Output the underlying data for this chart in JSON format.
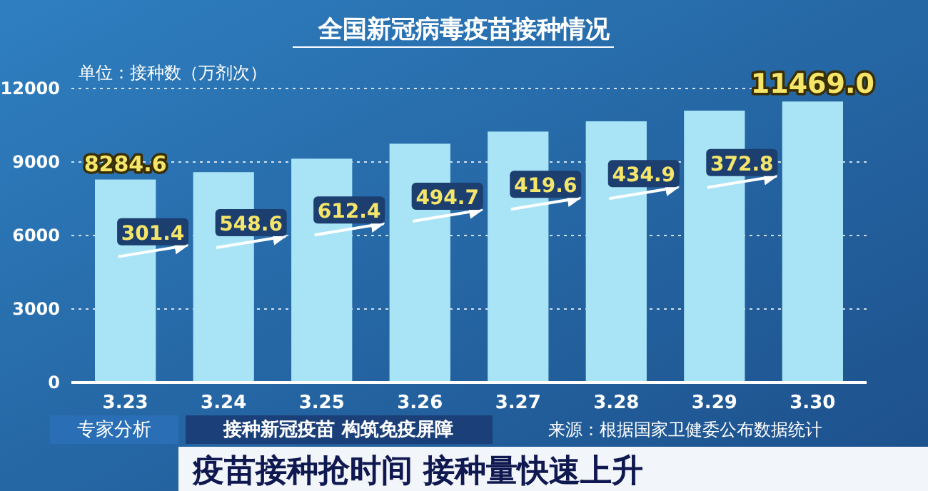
{
  "chart_data": {
    "type": "bar",
    "title": "全国新冠病毒疫苗接种情况",
    "subtitle": "疫苗接种抢时间 接种量快速上升",
    "ylabel": "单位：接种数（万剂次）",
    "categories": [
      "3.23",
      "3.24",
      "3.25",
      "3.26",
      "3.27",
      "3.28",
      "3.29",
      "3.30"
    ],
    "values": [
      8284.6,
      8586.0,
      9134.6,
      9747.0,
      10241.7,
      10661.3,
      11096.2,
      11469.0
    ],
    "value_labels": [
      "8284.6",
      null,
      null,
      null,
      null,
      null,
      null,
      "11469.0"
    ],
    "color": "#a8e4f5",
    "ylim": [
      0,
      12000
    ],
    "yticks": [
      0,
      3000,
      6000,
      9000,
      12000
    ],
    "grid": "y",
    "annotations": [
      "301.4",
      "548.6",
      "612.4",
      "494.7",
      "419.6",
      "434.9",
      "372.8",
      "专家分析",
      "接种新冠疫苗 构筑免疫屏障",
      "来源：根据国家卫健委公布数据统计"
    ]
  }
}
